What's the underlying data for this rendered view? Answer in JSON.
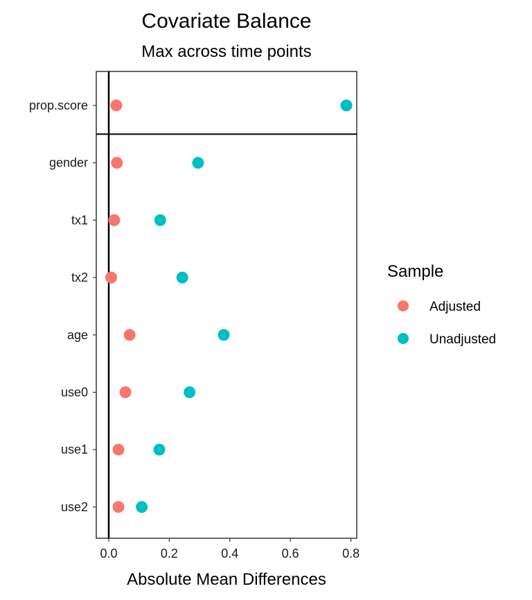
{
  "chart_data": {
    "type": "scatter",
    "title": "Covariate Balance",
    "subtitle": "Max across time points",
    "xlabel": "Absolute Mean Differences",
    "ylabel": "",
    "xlim": [
      -0.04,
      0.82
    ],
    "xticks": [
      "0.0",
      "0.2",
      "0.4",
      "0.6",
      "0.8"
    ],
    "categories": [
      "prop.score",
      "gender",
      "tx1",
      "tx2",
      "age",
      "use0",
      "use1",
      "use2"
    ],
    "grid": false,
    "reference_line_x": 0,
    "separator_after_category": "prop.score",
    "legend": {
      "title": "Sample",
      "position": "right"
    },
    "series": [
      {
        "name": "Adjusted",
        "color": "#F8766D",
        "values": [
          0.025,
          0.027,
          0.018,
          0.008,
          0.069,
          0.055,
          0.032,
          0.032
        ]
      },
      {
        "name": "Unadjusted",
        "color": "#00BFC4",
        "values": [
          0.785,
          0.295,
          0.17,
          0.243,
          0.38,
          0.267,
          0.167,
          0.109
        ]
      }
    ]
  }
}
